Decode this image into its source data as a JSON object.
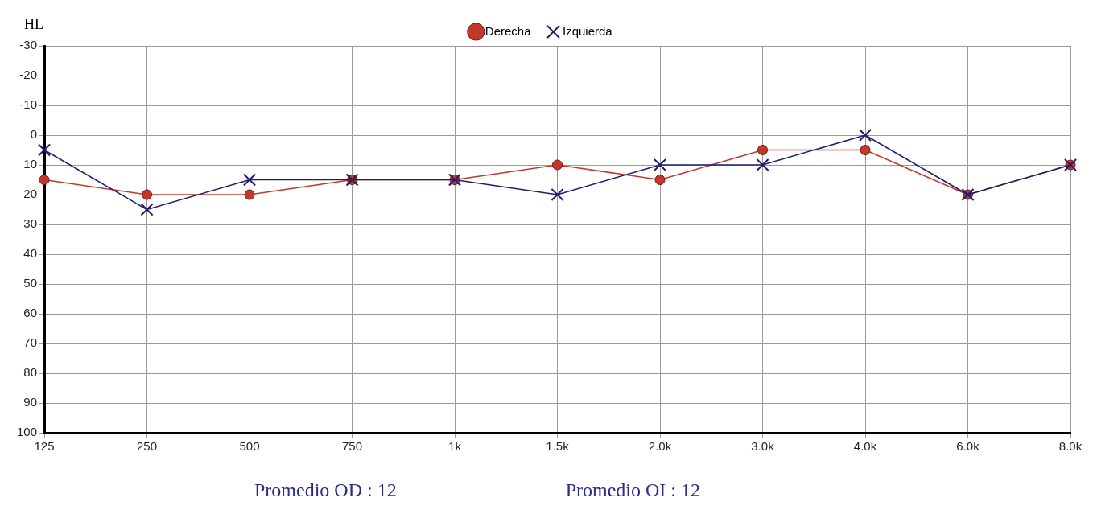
{
  "chart_data": {
    "type": "line",
    "ylabel": "HL",
    "categories": [
      "125",
      "250",
      "500",
      "750",
      "1k",
      "1.5k",
      "2.0k",
      "3.0k",
      "4.0k",
      "6.0k",
      "8.0k"
    ],
    "series": [
      {
        "name": "Derecha",
        "color": "#c0392b",
        "marker": "circle",
        "values": [
          15,
          20,
          20,
          15,
          15,
          10,
          15,
          5,
          5,
          20,
          10
        ]
      },
      {
        "name": "Izquierda",
        "color": "#1f1f6e",
        "marker": "cross",
        "values": [
          5,
          25,
          15,
          15,
          15,
          20,
          10,
          10,
          0,
          20,
          10
        ]
      }
    ],
    "ylim": [
      100,
      -30
    ],
    "yticks": [
      100,
      90,
      80,
      70,
      60,
      50,
      40,
      30,
      20,
      10,
      0,
      -10,
      -20,
      -30
    ],
    "grid": true,
    "legend": "top",
    "line_style": "solid",
    "annotations": [
      "Promedio OD : 12",
      "Promedio OI : 12"
    ]
  }
}
